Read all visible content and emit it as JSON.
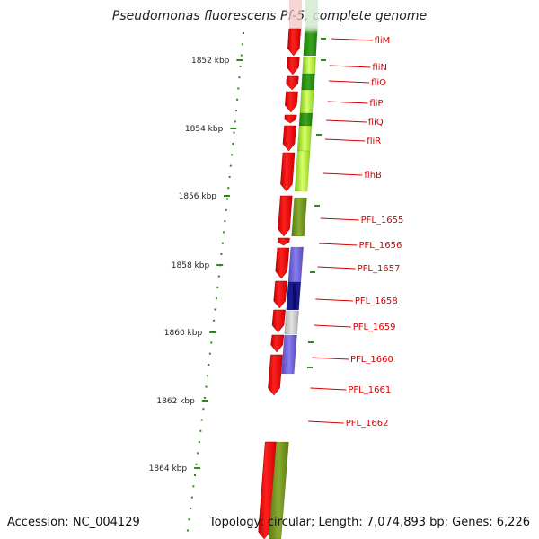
{
  "title": "Pseudomonas fluorescens Pf-5, complete genome",
  "footer": {
    "accession": "Accession: NC_004129",
    "summary": "Topology: circular; Length: 7,074,893 bp; Genes: 6,226"
  },
  "colors": {
    "gene_red": "#ee0000",
    "gc_green": "#2a8a12",
    "light_green": "#a6e83a",
    "olive": "#6f8e1e",
    "purple": "#6a5acd",
    "navy": "#1a1a8a",
    "gray": "#c4c4c4",
    "label_red": "#d80000",
    "backbone": "#777777"
  },
  "ticks": [
    {
      "label": "1852 kbp"
    },
    {
      "label": "1854 kbp"
    },
    {
      "label": "1856 kbp"
    },
    {
      "label": "1858 kbp"
    },
    {
      "label": "1860 kbp"
    },
    {
      "label": "1862 kbp"
    },
    {
      "label": "1864 kbp"
    }
  ],
  "genes": [
    {
      "name": "fliM"
    },
    {
      "name": "fliN"
    },
    {
      "name": "fliO"
    },
    {
      "name": "fliP"
    },
    {
      "name": "fliQ"
    },
    {
      "name": "fliR"
    },
    {
      "name": "flhB"
    },
    {
      "name": "PFL_1655"
    },
    {
      "name": "PFL_1656"
    },
    {
      "name": "PFL_1657"
    },
    {
      "name": "PFL_1658"
    },
    {
      "name": "PFL_1659"
    },
    {
      "name": "PFL_1660"
    },
    {
      "name": "PFL_1661"
    },
    {
      "name": "PFL_1662"
    }
  ]
}
